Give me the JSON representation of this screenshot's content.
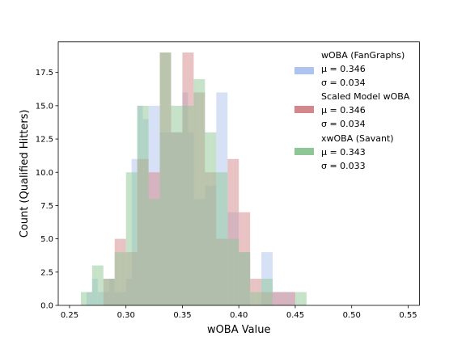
{
  "chart_data": {
    "type": "histogram",
    "xlabel": "wOBA Value",
    "ylabel": "Count (Qualified Hitters)",
    "xlim": [
      0.24,
      0.56
    ],
    "ylim": [
      0,
      19.8
    ],
    "xticks": [
      0.25,
      0.3,
      0.35,
      0.4,
      0.45,
      0.5,
      0.55
    ],
    "xtick_labels": [
      "0.25",
      "0.30",
      "0.35",
      "0.40",
      "0.45",
      "0.50",
      "0.55"
    ],
    "yticks": [
      0.0,
      2.5,
      5.0,
      7.5,
      10.0,
      12.5,
      15.0,
      17.5
    ],
    "ytick_labels": [
      "0.0",
      "2.5",
      "5.0",
      "7.5",
      "10.0",
      "12.5",
      "15.0",
      "17.5"
    ],
    "bin_edges": [
      0.26,
      0.265,
      0.27,
      0.275,
      0.28,
      0.285,
      0.29,
      0.295,
      0.3,
      0.305,
      0.31,
      0.315,
      0.32,
      0.325,
      0.33,
      0.335,
      0.34,
      0.345,
      0.35,
      0.355,
      0.36,
      0.365,
      0.37,
      0.375,
      0.38,
      0.385,
      0.39,
      0.395,
      0.4,
      0.405,
      0.41,
      0.415,
      0.42,
      0.425,
      0.43,
      0.435,
      0.44,
      0.445,
      0.45,
      0.455,
      0.46
    ],
    "legend_position": "upper right",
    "series": [
      {
        "name": "wOBA (FanGraphs)",
        "mu": "μ = 0.346",
        "sigma": "σ = 0.034",
        "color": "#aec3ee",
        "counts": [
          0,
          1,
          2,
          1,
          1,
          2,
          1,
          1,
          2,
          11,
          15,
          14,
          15,
          15,
          13,
          13,
          13,
          13,
          16,
          13,
          8,
          8,
          9,
          9,
          16,
          16,
          7,
          7,
          4,
          4,
          0,
          0,
          4,
          4,
          1,
          1,
          1,
          1,
          0,
          0
        ]
      },
      {
        "name": "Scaled Model wOBA",
        "mu": "μ = 0.346",
        "sigma": "σ = 0.034",
        "color": "#d3878a",
        "counts": [
          0,
          0,
          0,
          0,
          2,
          2,
          5,
          5,
          4,
          4,
          11,
          11,
          10,
          10,
          19,
          19,
          13,
          13,
          19,
          19,
          16,
          16,
          10,
          10,
          5,
          5,
          11,
          11,
          7,
          7,
          2,
          2,
          1,
          1,
          1,
          1,
          1,
          1,
          0,
          0
        ]
      },
      {
        "name": "xwOBA (Savant)",
        "mu": "μ = 0.343",
        "sigma": "σ = 0.033",
        "color": "#8ec795",
        "counts": [
          1,
          1,
          3,
          3,
          2,
          2,
          4,
          4,
          10,
          10,
          15,
          15,
          8,
          8,
          19,
          19,
          15,
          15,
          15,
          15,
          17,
          17,
          13,
          13,
          10,
          10,
          5,
          5,
          4,
          4,
          1,
          1,
          2,
          2,
          0,
          0,
          0,
          0,
          1,
          1
        ]
      }
    ]
  }
}
